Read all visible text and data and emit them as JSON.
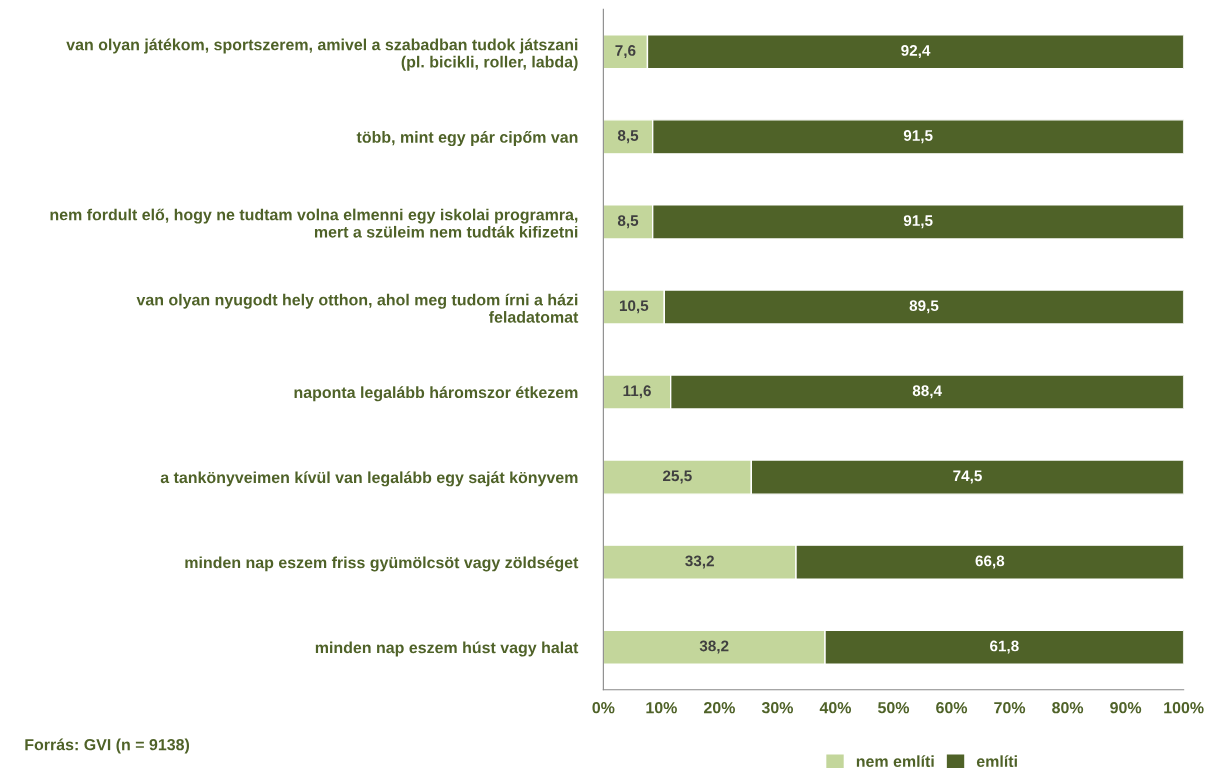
{
  "chart_data": {
    "type": "bar",
    "orientation": "horizontal",
    "stacked": true,
    "categories": [
      "van olyan játékom, sportszerem, amivel a szabadban tudok játszani\n(pl. bicikli, roller, labda)",
      "több, mint egy pár cipőm van",
      "nem fordult elő, hogy ne tudtam volna elmenni egy iskolai programra,\nmert a szüleim nem tudták kifizetni",
      "van olyan nyugodt hely otthon, ahol meg tudom írni a házi\nfeladatomat",
      "naponta legalább háromszor étkezem",
      "a tankönyveimen kívül van legalább egy saját könyvem",
      "minden nap eszem friss gyümölcsöt vagy zöldséget",
      "minden nap eszem húst vagy halat"
    ],
    "series": [
      {
        "name": "nem említi",
        "color": "#c3d69b",
        "values": [
          7.6,
          8.5,
          8.5,
          10.5,
          11.6,
          25.5,
          33.2,
          38.2
        ],
        "value_labels": [
          "7,6",
          "8,5",
          "8,5",
          "10,5",
          "11,6",
          "25,5",
          "33,2",
          "38,2"
        ]
      },
      {
        "name": "említi",
        "color": "#4f6228",
        "values": [
          92.4,
          91.5,
          91.5,
          89.5,
          88.4,
          74.5,
          66.8,
          61.8
        ],
        "value_labels": [
          "92,4",
          "91,5",
          "91,5",
          "89,5",
          "88,4",
          "74,5",
          "66,8",
          "61,8"
        ]
      }
    ],
    "xlim": [
      0,
      100
    ],
    "xticks": [
      {
        "value": 0,
        "label": "0%"
      },
      {
        "value": 10,
        "label": "10%"
      },
      {
        "value": 20,
        "label": "20%"
      },
      {
        "value": 30,
        "label": "30%"
      },
      {
        "value": 40,
        "label": "40%"
      },
      {
        "value": 50,
        "label": "50%"
      },
      {
        "value": 60,
        "label": "60%"
      },
      {
        "value": 70,
        "label": "70%"
      },
      {
        "value": 80,
        "label": "80%"
      },
      {
        "value": 90,
        "label": "90%"
      },
      {
        "value": 100,
        "label": "100%"
      }
    ],
    "grid": false,
    "legend": "bottom",
    "annotations": [
      "Forrás: GVI (n = 9138)"
    ]
  }
}
